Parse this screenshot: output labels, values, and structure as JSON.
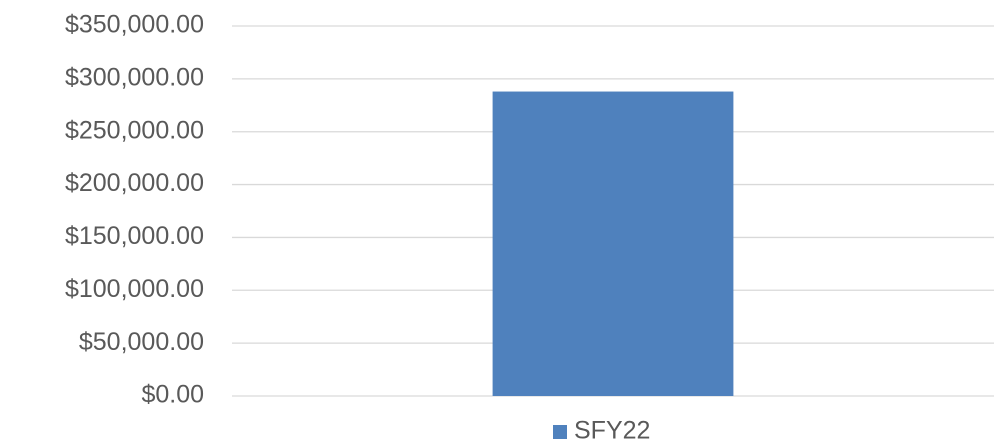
{
  "chart_data": {
    "type": "bar",
    "categories": [
      null
    ],
    "series": [
      {
        "name": "SFY22",
        "color": "#4f81bd",
        "values": [
          288000
        ]
      }
    ],
    "ylim": [
      0,
      350000
    ],
    "yticks": [
      {
        "value": 0,
        "label": "$0.00"
      },
      {
        "value": 50000,
        "label": "$50,000.00"
      },
      {
        "value": 100000,
        "label": "$100,000.00"
      },
      {
        "value": 150000,
        "label": "$150,000.00"
      },
      {
        "value": 200000,
        "label": "$200,000.00"
      },
      {
        "value": 250000,
        "label": "$250,000.00"
      },
      {
        "value": 300000,
        "label": "$300,000.00"
      },
      {
        "value": 350000,
        "label": "$350,000.00"
      }
    ],
    "grid": true,
    "legend": "bottom"
  }
}
